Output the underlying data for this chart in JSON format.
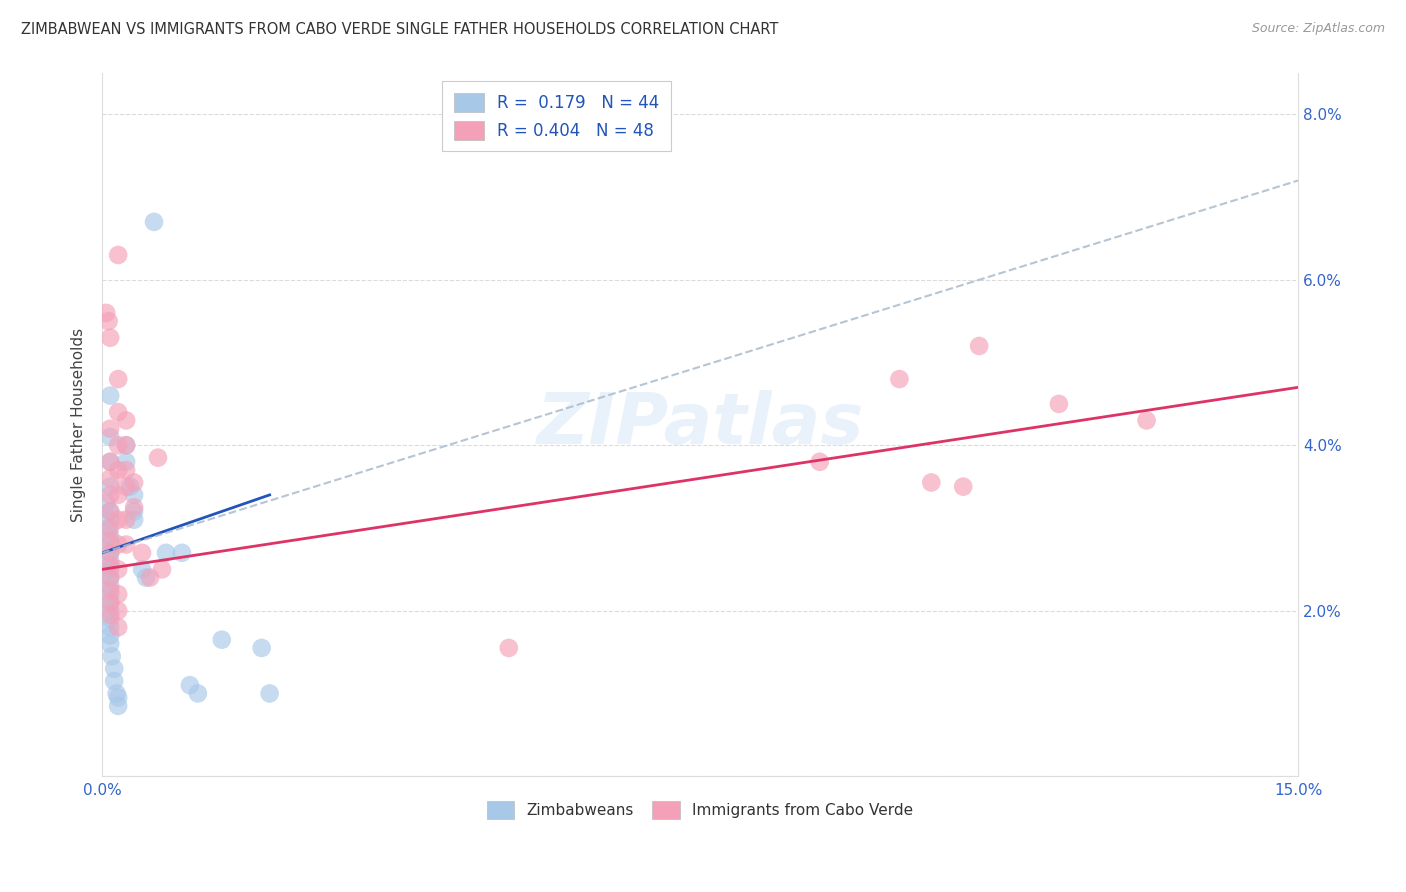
{
  "title": "ZIMBABWEAN VS IMMIGRANTS FROM CABO VERDE SINGLE FATHER HOUSEHOLDS CORRELATION CHART",
  "source": "Source: ZipAtlas.com",
  "ylabel": "Single Father Households",
  "xlim": [
    0.0,
    0.15
  ],
  "ylim": [
    0.0,
    0.085
  ],
  "xticks": [
    0.0,
    0.03,
    0.06,
    0.09,
    0.12,
    0.15
  ],
  "xtick_labels": [
    "0.0%",
    "",
    "",
    "",
    "",
    "15.0%"
  ],
  "yticks": [
    0.0,
    0.02,
    0.04,
    0.06,
    0.08
  ],
  "blue_color": "#a8c8e8",
  "pink_color": "#f4a0b8",
  "blue_line_color": "#2255bb",
  "pink_line_color": "#dd3366",
  "gray_dash_color": "#aabbcc",
  "blue_scatter": [
    [
      0.0005,
      0.033
    ],
    [
      0.0008,
      0.03
    ],
    [
      0.001,
      0.046
    ],
    [
      0.001,
      0.041
    ],
    [
      0.001,
      0.038
    ],
    [
      0.001,
      0.035
    ],
    [
      0.001,
      0.032
    ],
    [
      0.001,
      0.031
    ],
    [
      0.001,
      0.029
    ],
    [
      0.001,
      0.028
    ],
    [
      0.001,
      0.027
    ],
    [
      0.001,
      0.026
    ],
    [
      0.001,
      0.025
    ],
    [
      0.001,
      0.024
    ],
    [
      0.001,
      0.023
    ],
    [
      0.001,
      0.022
    ],
    [
      0.001,
      0.021
    ],
    [
      0.001,
      0.02
    ],
    [
      0.001,
      0.019
    ],
    [
      0.001,
      0.018
    ],
    [
      0.001,
      0.017
    ],
    [
      0.001,
      0.016
    ],
    [
      0.0012,
      0.0145
    ],
    [
      0.0015,
      0.013
    ],
    [
      0.0015,
      0.0115
    ],
    [
      0.0018,
      0.01
    ],
    [
      0.002,
      0.0095
    ],
    [
      0.002,
      0.0085
    ],
    [
      0.003,
      0.04
    ],
    [
      0.003,
      0.038
    ],
    [
      0.0035,
      0.035
    ],
    [
      0.004,
      0.034
    ],
    [
      0.004,
      0.032
    ],
    [
      0.004,
      0.031
    ],
    [
      0.005,
      0.025
    ],
    [
      0.0055,
      0.024
    ],
    [
      0.0065,
      0.067
    ],
    [
      0.008,
      0.027
    ],
    [
      0.01,
      0.027
    ],
    [
      0.011,
      0.011
    ],
    [
      0.012,
      0.01
    ],
    [
      0.015,
      0.0165
    ],
    [
      0.02,
      0.0155
    ],
    [
      0.021,
      0.01
    ]
  ],
  "pink_scatter": [
    [
      0.0005,
      0.056
    ],
    [
      0.0008,
      0.055
    ],
    [
      0.001,
      0.053
    ],
    [
      0.001,
      0.042
    ],
    [
      0.001,
      0.038
    ],
    [
      0.001,
      0.036
    ],
    [
      0.001,
      0.034
    ],
    [
      0.001,
      0.032
    ],
    [
      0.001,
      0.03
    ],
    [
      0.001,
      0.0285
    ],
    [
      0.001,
      0.027
    ],
    [
      0.001,
      0.0255
    ],
    [
      0.001,
      0.024
    ],
    [
      0.001,
      0.0225
    ],
    [
      0.001,
      0.021
    ],
    [
      0.001,
      0.0195
    ],
    [
      0.002,
      0.063
    ],
    [
      0.002,
      0.048
    ],
    [
      0.002,
      0.044
    ],
    [
      0.002,
      0.04
    ],
    [
      0.002,
      0.037
    ],
    [
      0.002,
      0.034
    ],
    [
      0.002,
      0.031
    ],
    [
      0.002,
      0.028
    ],
    [
      0.002,
      0.025
    ],
    [
      0.002,
      0.022
    ],
    [
      0.002,
      0.02
    ],
    [
      0.002,
      0.018
    ],
    [
      0.003,
      0.043
    ],
    [
      0.003,
      0.04
    ],
    [
      0.003,
      0.037
    ],
    [
      0.003,
      0.035
    ],
    [
      0.003,
      0.031
    ],
    [
      0.003,
      0.028
    ],
    [
      0.004,
      0.0355
    ],
    [
      0.004,
      0.0325
    ],
    [
      0.005,
      0.027
    ],
    [
      0.006,
      0.024
    ],
    [
      0.007,
      0.0385
    ],
    [
      0.0075,
      0.025
    ],
    [
      0.051,
      0.0155
    ],
    [
      0.09,
      0.038
    ],
    [
      0.1,
      0.048
    ],
    [
      0.104,
      0.0355
    ],
    [
      0.108,
      0.035
    ],
    [
      0.11,
      0.052
    ],
    [
      0.12,
      0.045
    ],
    [
      0.131,
      0.043
    ]
  ],
  "blue_line": {
    "x0": 0.0,
    "y0": 0.027,
    "x1": 0.021,
    "y1": 0.034
  },
  "gray_dash_line": {
    "x0": 0.0,
    "y0": 0.027,
    "x1": 0.15,
    "y1": 0.072
  },
  "pink_line": {
    "x0": 0.0,
    "y0": 0.025,
    "x1": 0.15,
    "y1": 0.047
  },
  "watermark_text": "ZIPatlas",
  "background_color": "#ffffff",
  "grid_color": "#cccccc",
  "legend1_labels": [
    "R =  0.179   N = 44",
    "R = 0.404   N = 48"
  ],
  "legend2_labels": [
    "Zimbabweans",
    "Immigrants from Cabo Verde"
  ]
}
